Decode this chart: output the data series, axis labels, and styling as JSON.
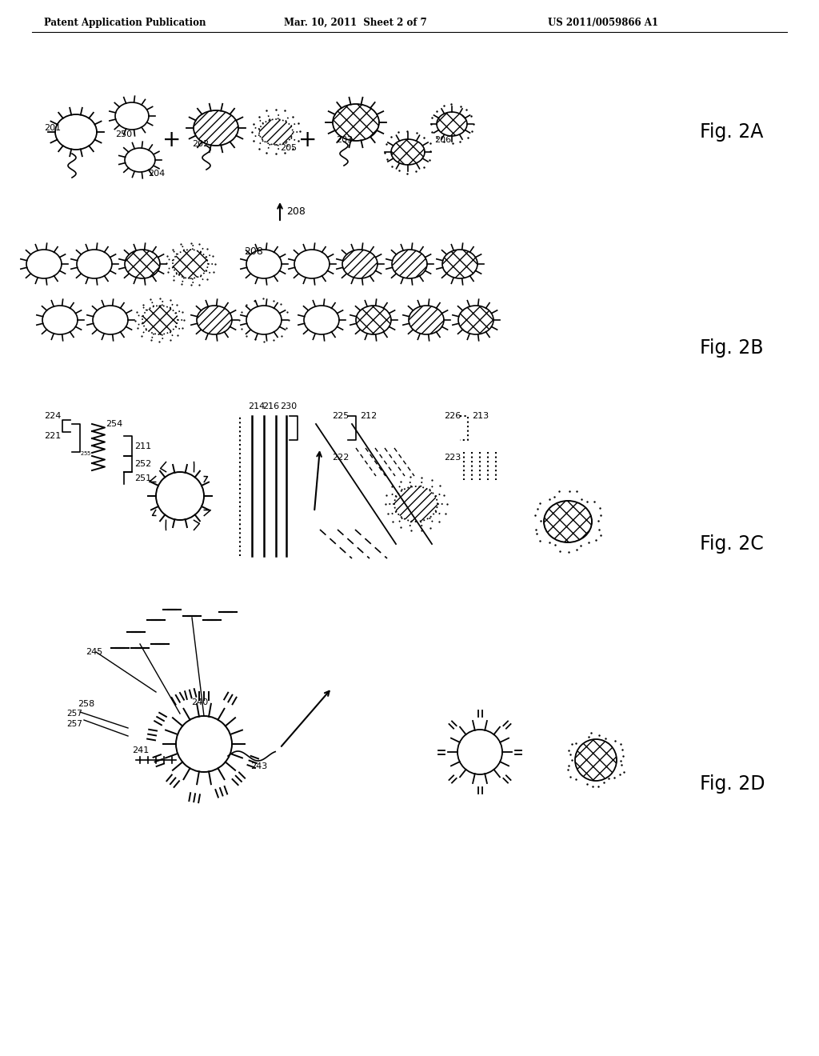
{
  "header_left": "Patent Application Publication",
  "header_mid": "Mar. 10, 2011  Sheet 2 of 7",
  "header_right": "US 2011/0059866 A1",
  "background_color": "#ffffff"
}
